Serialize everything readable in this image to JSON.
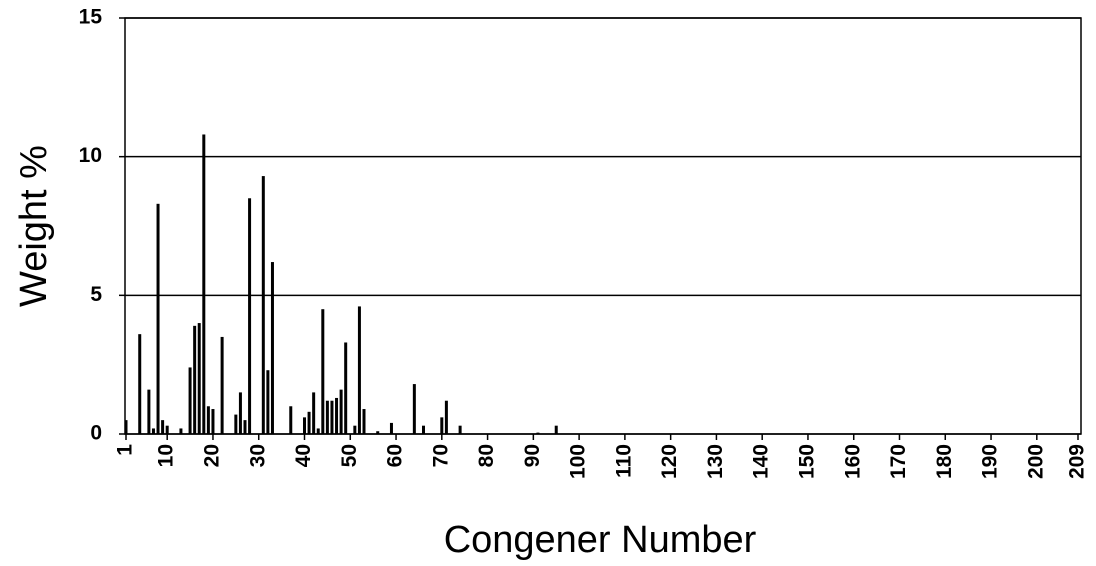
{
  "chart_data": {
    "type": "bar",
    "x_label": "Congener Number",
    "y_label": "Weight %",
    "x": [
      1,
      4,
      6,
      7,
      8,
      9,
      10,
      13,
      15,
      16,
      17,
      18,
      19,
      20,
      22,
      25,
      26,
      27,
      28,
      31,
      32,
      33,
      37,
      40,
      41,
      42,
      43,
      44,
      45,
      46,
      47,
      48,
      49,
      51,
      52,
      53,
      56,
      59,
      64,
      66,
      70,
      71,
      74,
      91,
      95
    ],
    "values": [
      0.5,
      3.6,
      1.6,
      0.2,
      8.3,
      0.5,
      0.3,
      0.2,
      2.4,
      3.9,
      4.0,
      10.8,
      1.0,
      0.9,
      3.5,
      0.7,
      1.5,
      0.5,
      8.5,
      9.3,
      2.3,
      6.2,
      1.0,
      0.6,
      0.8,
      1.5,
      0.2,
      4.5,
      1.2,
      1.2,
      1.3,
      1.6,
      3.3,
      0.3,
      4.6,
      0.9,
      0.1,
      0.4,
      1.8,
      0.3,
      0.6,
      1.2,
      0.3,
      0.05,
      0.3
    ],
    "color": "#000000",
    "xlim": [
      1,
      209
    ],
    "xticks": [
      1,
      10,
      20,
      30,
      40,
      50,
      60,
      70,
      80,
      90,
      100,
      110,
      120,
      130,
      140,
      150,
      160,
      170,
      180,
      190,
      200,
      209
    ],
    "ylim": [
      0,
      15
    ],
    "yticks": [
      0,
      5,
      10,
      15
    ],
    "grid": true
  }
}
